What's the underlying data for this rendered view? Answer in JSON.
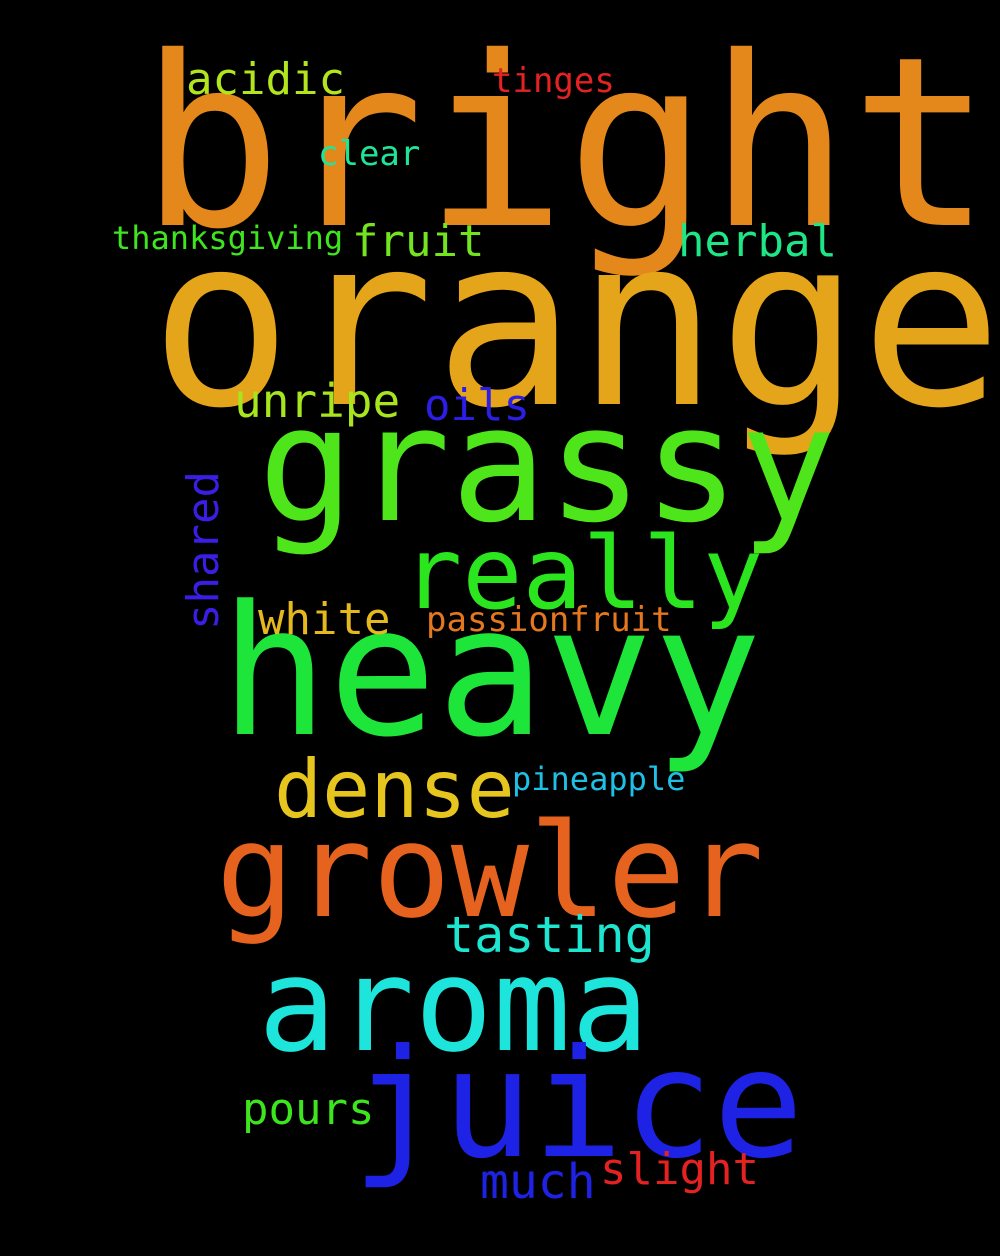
{
  "words": {
    "bright": {
      "text": "bright",
      "color": "#e5881b"
    },
    "orange": {
      "text": "orange",
      "color": "#e5a51a"
    },
    "grassy": {
      "text": "grassy",
      "color": "#4ee51b"
    },
    "really": {
      "text": "really",
      "color": "#2be51f"
    },
    "heavy": {
      "text": "heavy",
      "color": "#1ee53a"
    },
    "growler": {
      "text": "growler",
      "color": "#e5631e"
    },
    "dense": {
      "text": "dense",
      "color": "#e5c51e"
    },
    "aroma": {
      "text": "aroma",
      "color": "#1ee5db"
    },
    "juice": {
      "text": "juice",
      "color": "#1e22e5"
    },
    "acidic": {
      "text": "acidic",
      "color": "#b2e51e"
    },
    "tinges": {
      "text": "tinges",
      "color": "#e52222"
    },
    "clear": {
      "text": "clear",
      "color": "#1ee598"
    },
    "thanksgiving": {
      "text": "thanksgiving",
      "color": "#3fe51e"
    },
    "fruit": {
      "text": "fruit",
      "color": "#72e51e"
    },
    "herbal": {
      "text": "herbal",
      "color": "#1ee586"
    },
    "unripe": {
      "text": "unripe",
      "color": "#a7e51e"
    },
    "oils": {
      "text": "oils",
      "color": "#2d1ee5"
    },
    "shared": {
      "text": "shared",
      "color": "#3a1ee5"
    },
    "white": {
      "text": "white",
      "color": "#e5b81e"
    },
    "passionfruit": {
      "text": "passionfruit",
      "color": "#e5781e"
    },
    "pineapple": {
      "text": "pineapple",
      "color": "#1ec0e5"
    },
    "tasting": {
      "text": "tasting",
      "color": "#1ee5cf"
    },
    "pours": {
      "text": "pours",
      "color": "#3de51e"
    },
    "much": {
      "text": "much",
      "color": "#1e22e5"
    },
    "slight": {
      "text": "slight",
      "color": "#e52222"
    }
  }
}
